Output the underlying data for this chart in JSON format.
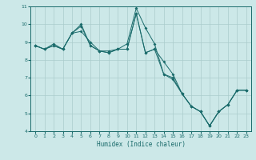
{
  "title": "",
  "xlabel": "Humidex (Indice chaleur)",
  "ylabel": "",
  "xlim": [
    -0.5,
    23.5
  ],
  "ylim": [
    4,
    11
  ],
  "yticks": [
    4,
    5,
    6,
    7,
    8,
    9,
    10,
    11
  ],
  "xticks": [
    0,
    1,
    2,
    3,
    4,
    5,
    6,
    7,
    8,
    9,
    10,
    11,
    12,
    13,
    14,
    15,
    16,
    17,
    18,
    19,
    20,
    21,
    22,
    23
  ],
  "background_color": "#cce8e8",
  "grid_color": "#aacccc",
  "line_color": "#1a6b6b",
  "series1_x": [
    0,
    1,
    2,
    3,
    4,
    5,
    6,
    7,
    8,
    9,
    10,
    11,
    12,
    13,
    14,
    15,
    16,
    17,
    18,
    19,
    20,
    21,
    22,
    23
  ],
  "series1_y": [
    8.8,
    8.6,
    8.9,
    8.6,
    9.5,
    9.6,
    9.0,
    8.5,
    8.5,
    8.6,
    8.6,
    10.6,
    8.4,
    8.6,
    7.2,
    7.0,
    6.1,
    5.4,
    5.1,
    4.3,
    5.1,
    5.5,
    6.3,
    6.3
  ],
  "series2_x": [
    0,
    1,
    2,
    3,
    4,
    5,
    6,
    7,
    8,
    9,
    10,
    11,
    12,
    13,
    14,
    15,
    16,
    17,
    18,
    19,
    20,
    21,
    22,
    23
  ],
  "series2_y": [
    8.8,
    8.6,
    8.8,
    8.6,
    9.5,
    10.0,
    8.8,
    8.5,
    8.4,
    8.6,
    8.9,
    10.9,
    9.8,
    8.9,
    7.2,
    6.9,
    6.1,
    5.4,
    5.1,
    4.3,
    5.1,
    5.5,
    6.3,
    6.3
  ],
  "series3_x": [
    0,
    1,
    2,
    3,
    4,
    5,
    6,
    7,
    8,
    9,
    10,
    11,
    12,
    13,
    14,
    15,
    16,
    17,
    18,
    19,
    20,
    21,
    22,
    23
  ],
  "series3_y": [
    8.8,
    8.6,
    8.8,
    8.6,
    9.5,
    9.9,
    8.8,
    8.5,
    8.4,
    8.6,
    8.6,
    10.6,
    8.4,
    8.6,
    7.9,
    7.2,
    6.1,
    5.4,
    5.1,
    4.3,
    5.1,
    5.5,
    6.3,
    6.3
  ]
}
